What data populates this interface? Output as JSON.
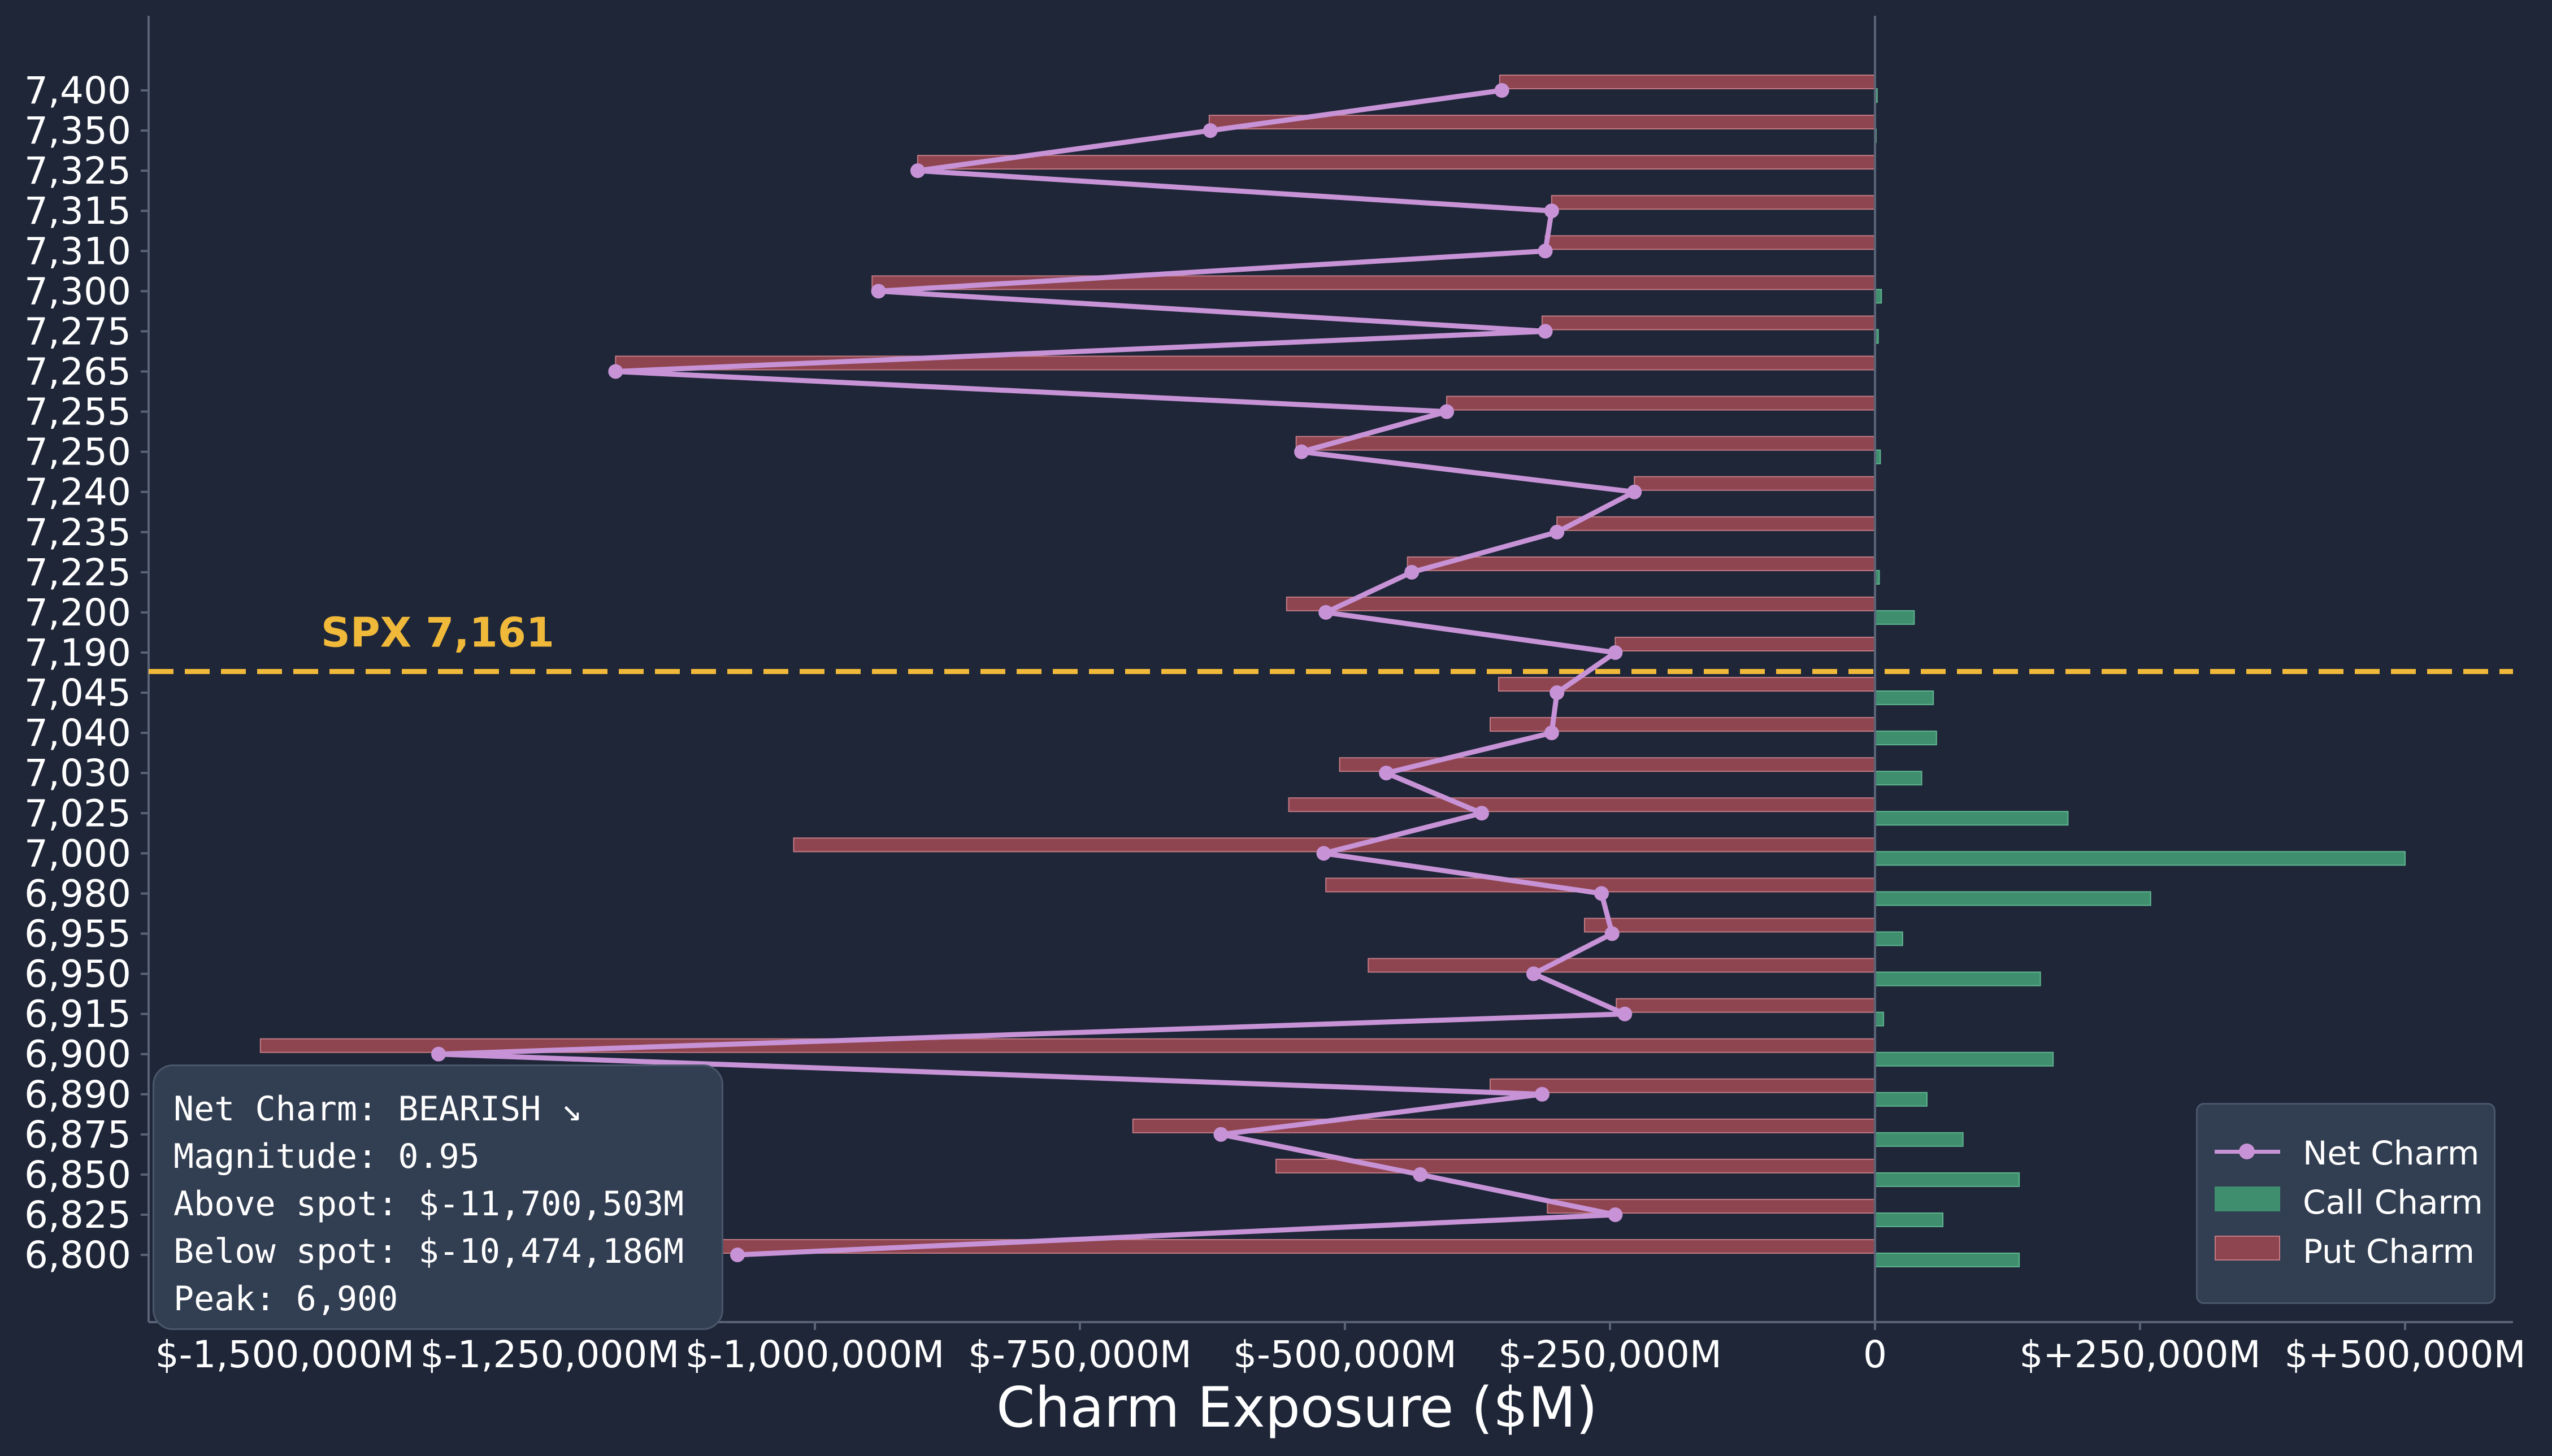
{
  "chart_data": {
    "type": "bar",
    "orientation": "horizontal",
    "xlabel": "Charm Exposure ($M)",
    "ylabel": "",
    "title": "",
    "xlim": [
      -1600000,
      570000
    ],
    "categories": [
      "7,400",
      "7,350",
      "7,325",
      "7,315",
      "7,310",
      "7,300",
      "7,275",
      "7,265",
      "7,255",
      "7,250",
      "7,240",
      "7,235",
      "7,225",
      "7,200",
      "7,190",
      "7,045",
      "7,040",
      "7,030",
      "7,025",
      "7,000",
      "6,980",
      "6,955",
      "6,950",
      "6,915",
      "6,900",
      "6,890",
      "6,875",
      "6,850",
      "6,825",
      "6,800"
    ],
    "x_ticks": [
      -1500000,
      -1250000,
      -1000000,
      -750000,
      -500000,
      -250000,
      0,
      250000,
      500000
    ],
    "x_tick_labels": [
      "$-1,500,000M",
      "$-1,250,000M",
      "$-1,000,000M",
      "$-750,000M",
      "$-500,000M",
      "$-250,000M",
      "0",
      "$+250,000M",
      "$+500,000M"
    ],
    "series": [
      {
        "name": "Net Charm",
        "kind": "line",
        "values": [
          -352000,
          -627000,
          -903000,
          -305000,
          -311000,
          -940000,
          -311000,
          -1188000,
          -404000,
          -541000,
          -227000,
          -300000,
          -437000,
          -518000,
          -245000,
          -300000,
          -305000,
          -461000,
          -371000,
          -520000,
          -258000,
          -248000,
          -322000,
          -236000,
          -1355000,
          -314000,
          -617000,
          -429000,
          -245000,
          -1073000
        ]
      },
      {
        "name": "Call Charm",
        "kind": "bar",
        "values": [
          2000,
          1000,
          0,
          0,
          0,
          6000,
          3000,
          0,
          0,
          5000,
          0,
          0,
          4000,
          37000,
          0,
          55000,
          58000,
          44000,
          182000,
          500000,
          260000,
          26000,
          156000,
          8000,
          168000,
          49000,
          83000,
          136000,
          64000,
          136000
        ]
      },
      {
        "name": "Put Charm",
        "kind": "bar",
        "values": [
          -354000,
          -628000,
          -903000,
          -305000,
          -311000,
          -946000,
          -314000,
          -1188000,
          -404000,
          -546000,
          -227000,
          -300000,
          -441000,
          -555000,
          -245000,
          -355000,
          -363000,
          -505000,
          -553000,
          -1020000,
          -518000,
          -274000,
          -478000,
          -244000,
          -1523000,
          -363000,
          -700000,
          -565000,
          -309000,
          -1209000
        ]
      }
    ],
    "spot": {
      "label": "SPX 7,161",
      "position_between": [
        "7,190",
        "7,045"
      ]
    },
    "legend_position": "lower-right",
    "grid": false,
    "colors": {
      "net": "#c793d6",
      "call": "#3f8f6e",
      "put": "#8f4550",
      "spot": "#f0b93a",
      "background": "#1e2638"
    }
  },
  "summary": {
    "net_charm": "Net Charm: BEARISH ↘",
    "magnitude": "Magnitude: 0.95",
    "above_spot": "Above spot: $-11,700,503M",
    "below_spot": "Below spot: $-10,474,186M",
    "peak": "Peak: 6,900"
  },
  "legend": {
    "net": "Net Charm",
    "call": "Call Charm",
    "put": "Put Charm"
  }
}
